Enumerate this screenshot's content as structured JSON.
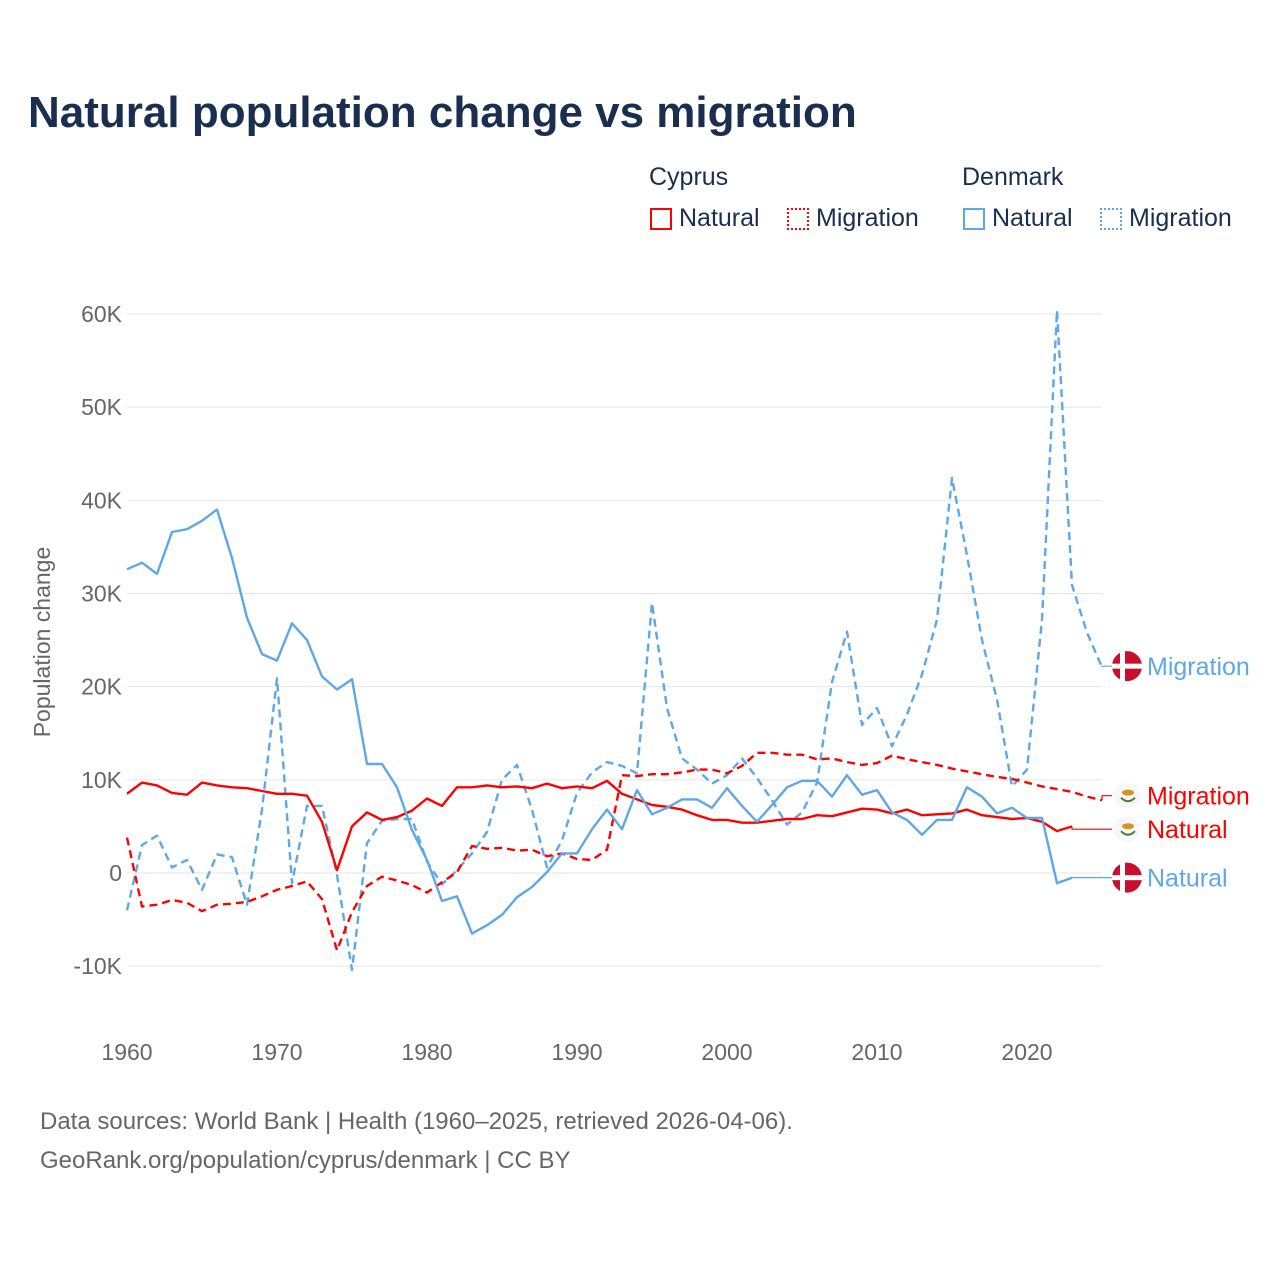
{
  "chart_data": {
    "type": "line",
    "title": "Natural population change vs migration",
    "xlabel": "",
    "ylabel": "Population change",
    "xlim": [
      1960,
      2025
    ],
    "ylim": [
      -10000,
      60000
    ],
    "x_ticks": [
      "1960",
      "1970",
      "1980",
      "1990",
      "2000",
      "2010",
      "2020"
    ],
    "y_ticks": [
      {
        "v": -10000,
        "label": "-10K"
      },
      {
        "v": 0,
        "label": "0"
      },
      {
        "v": 10000,
        "label": "10K"
      },
      {
        "v": 20000,
        "label": "20K"
      },
      {
        "v": 30000,
        "label": "30K"
      },
      {
        "v": 40000,
        "label": "40K"
      },
      {
        "v": 50000,
        "label": "50K"
      },
      {
        "v": 60000,
        "label": "60K"
      }
    ],
    "grid": true,
    "legend": {
      "placement": "top-right",
      "groups": [
        {
          "country": "Cyprus",
          "items": [
            "Natural",
            "Migration"
          ]
        },
        {
          "country": "Denmark",
          "items": [
            "Natural",
            "Migration"
          ]
        }
      ]
    },
    "start_year": 1960,
    "series": [
      {
        "name": "Denmark Migration",
        "country": "Denmark",
        "kind": "Migration",
        "color": "#5ea7e8",
        "dashed": true,
        "end_label": "Migration",
        "values": [
          -4.0,
          3.0,
          4.0,
          0.6,
          1.4,
          -1.8,
          2.0,
          1.7,
          -3.4,
          6.8,
          20.9,
          -1.1,
          7.2,
          7.2,
          -0.2,
          -10.4,
          3.2,
          5.6,
          5.8,
          5.8,
          1.2,
          -1.2,
          0.3,
          2.1,
          4.4,
          10.0,
          11.6,
          6.8,
          0.6,
          3.5,
          8.6,
          10.8,
          11.9,
          11.5,
          10.7,
          29.0,
          17.7,
          12.3,
          11.1,
          9.6,
          10.5,
          12.3,
          10.2,
          7.8,
          5.2,
          6.5,
          9.7,
          20.5,
          25.9,
          15.9,
          17.7,
          13.6,
          17.0,
          21.3,
          27.2,
          42.4,
          34.1,
          25.0,
          18.6,
          9.3,
          11.1,
          27.2,
          60.4,
          30.9,
          25.8,
          22.1
        ],
        "label_value": 22.2
      },
      {
        "name": "Cyprus Migration",
        "country": "Cyprus",
        "kind": "Migration",
        "color": "#ff0000",
        "dashed": true,
        "end_label": "Migration",
        "values": [
          3.8,
          -3.6,
          -3.4,
          -2.9,
          -3.2,
          -4.1,
          -3.4,
          -3.3,
          -3.1,
          -2.5,
          -1.8,
          -1.4,
          -0.9,
          -2.8,
          -8.3,
          -4.2,
          -1.4,
          -0.4,
          -0.8,
          -1.3,
          -2.1,
          -1.0,
          0.1,
          2.9,
          2.6,
          2.7,
          2.4,
          2.5,
          1.8,
          2.1,
          1.5,
          1.4,
          2.5,
          10.5,
          10.4,
          10.6,
          10.6,
          10.8,
          11.1,
          11.1,
          10.7,
          11.5,
          12.9,
          12.9,
          12.7,
          12.7,
          12.2,
          12.3,
          11.9,
          11.6,
          11.8,
          12.6,
          12.2,
          11.9,
          11.6,
          11.2,
          10.9,
          10.6,
          10.3,
          10.1,
          9.7,
          9.3,
          9.0,
          8.7,
          8.2,
          7.8
        ],
        "label_value": 8.3
      },
      {
        "name": "Cyprus Natural",
        "country": "Cyprus",
        "kind": "Natural",
        "color": "#ff0000",
        "dashed": false,
        "end_label": "Natural",
        "values": [
          8.5,
          9.7,
          9.4,
          8.6,
          8.4,
          9.7,
          9.4,
          9.2,
          9.1,
          8.8,
          8.5,
          8.5,
          8.3,
          5.5,
          0.3,
          5.0,
          6.5,
          5.7,
          6.0,
          6.7,
          8.0,
          7.2,
          9.2,
          9.2,
          9.4,
          9.2,
          9.3,
          9.1,
          9.6,
          9.1,
          9.3,
          9.1,
          9.9,
          8.5,
          7.9,
          7.3,
          7.1,
          6.8,
          6.2,
          5.7,
          5.7,
          5.4,
          5.4,
          5.6,
          5.8,
          5.8,
          6.2,
          6.1,
          6.5,
          6.9,
          6.8,
          6.4,
          6.8,
          6.2,
          6.3,
          6.4,
          6.8,
          6.2,
          6.0,
          5.8,
          5.9,
          5.5,
          4.5,
          5.0
        ],
        "label_value": 4.7
      },
      {
        "name": "Denmark Natural",
        "country": "Denmark",
        "kind": "Natural",
        "color": "#5ea7e8",
        "dashed": false,
        "end_label": "Natural",
        "values": [
          32.6,
          33.3,
          32.1,
          36.6,
          36.9,
          37.8,
          39.0,
          33.8,
          27.4,
          23.5,
          22.8,
          26.8,
          25.0,
          21.1,
          19.7,
          20.8,
          11.7,
          11.7,
          9.2,
          4.6,
          1.4,
          -3.0,
          -2.5,
          -6.5,
          -5.6,
          -4.5,
          -2.6,
          -1.5,
          0.1,
          2.1,
          2.1,
          4.7,
          6.8,
          4.7,
          8.9,
          6.3,
          7.0,
          7.9,
          7.9,
          7.0,
          9.1,
          7.2,
          5.5,
          7.3,
          9.2,
          9.9,
          9.9,
          8.2,
          10.5,
          8.4,
          8.9,
          6.5,
          5.7,
          4.1,
          5.7,
          5.7,
          9.2,
          8.2,
          6.4,
          7.0,
          5.9,
          5.9,
          -1.1,
          -0.5
        ],
        "label_value": -0.5
      }
    ],
    "value_unit": "thousands"
  },
  "sources": {
    "line1": "Data sources: World Bank | Health (1960–2025, retrieved 2026-04-06).",
    "line2": "GeoRank.org/population/cyprus/denmark | CC BY"
  }
}
